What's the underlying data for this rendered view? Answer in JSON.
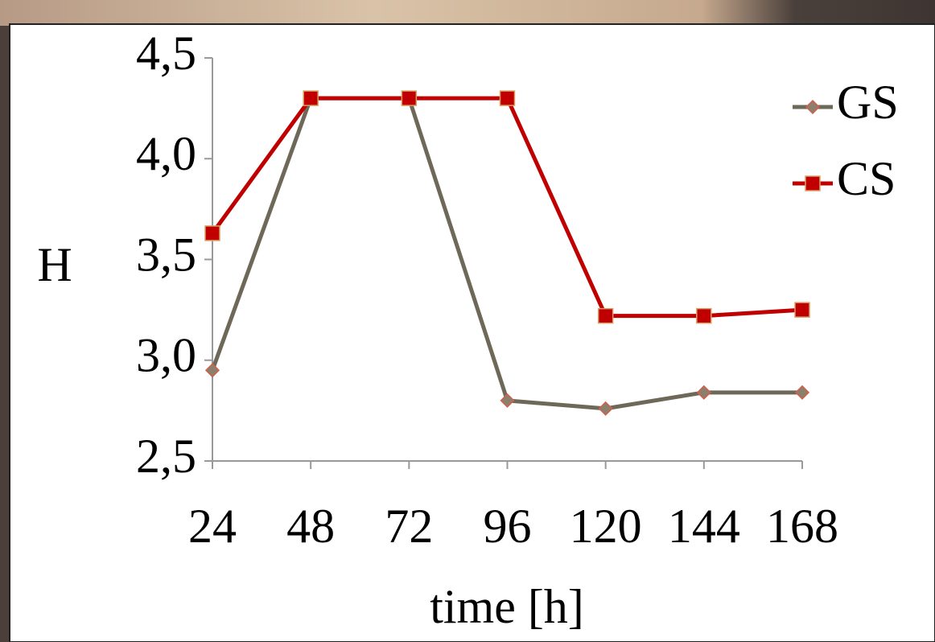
{
  "chart_data": {
    "type": "line",
    "y_label": "H",
    "x_label": "time [h]",
    "categories": [
      "24",
      "48",
      "72",
      "96",
      "120",
      "144",
      "168"
    ],
    "series": [
      {
        "name": "GS",
        "color": "#6e6858",
        "marker": "diamond",
        "values": [
          2.95,
          4.3,
          4.3,
          2.8,
          2.76,
          2.84,
          2.84
        ]
      },
      {
        "name": "CS",
        "color": "#c00000",
        "marker": "square",
        "values": [
          3.63,
          4.3,
          4.3,
          4.3,
          3.22,
          3.22,
          3.25
        ]
      }
    ],
    "ylim": [
      2.5,
      4.5
    ],
    "yticks": [
      {
        "value": 2.5,
        "label": "2,5"
      },
      {
        "value": 3,
        "label": "3,0"
      },
      {
        "value": 3.5,
        "label": "3,5"
      },
      {
        "value": 4,
        "label": "4,0"
      },
      {
        "value": 4.5,
        "label": "4,5"
      }
    ],
    "legend": "top-right"
  }
}
